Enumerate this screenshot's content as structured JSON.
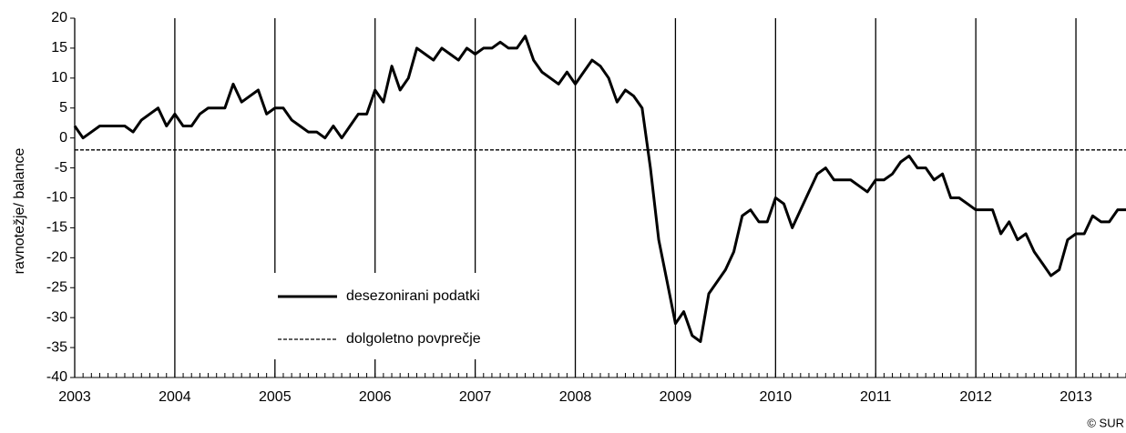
{
  "chart_data": {
    "type": "line",
    "y_label": "ravnotežje/ balance",
    "credit": "© SUR",
    "xlim": [
      2003,
      2013.5
    ],
    "xticks": [
      2003,
      2004,
      2005,
      2006,
      2007,
      2008,
      2009,
      2010,
      2011,
      2012,
      2013
    ],
    "ylim": [
      -40,
      20
    ],
    "yticks": [
      -40,
      -35,
      -30,
      -25,
      -20,
      -15,
      -10,
      -5,
      0,
      5,
      10,
      15,
      20
    ],
    "grid": "x",
    "x": [
      2003,
      2003.083,
      2003.167,
      2003.25,
      2003.333,
      2003.417,
      2003.5,
      2003.583,
      2003.667,
      2003.75,
      2003.833,
      2003.917,
      2004,
      2004.083,
      2004.167,
      2004.25,
      2004.333,
      2004.417,
      2004.5,
      2004.583,
      2004.667,
      2004.75,
      2004.833,
      2004.917,
      2005,
      2005.083,
      2005.167,
      2005.25,
      2005.333,
      2005.417,
      2005.5,
      2005.583,
      2005.667,
      2005.75,
      2005.833,
      2005.917,
      2006,
      2006.083,
      2006.167,
      2006.25,
      2006.333,
      2006.417,
      2006.5,
      2006.583,
      2006.667,
      2006.75,
      2006.833,
      2006.917,
      2007,
      2007.083,
      2007.167,
      2007.25,
      2007.333,
      2007.417,
      2007.5,
      2007.583,
      2007.667,
      2007.75,
      2007.833,
      2007.917,
      2008,
      2008.083,
      2008.167,
      2008.25,
      2008.333,
      2008.417,
      2008.5,
      2008.583,
      2008.667,
      2008.75,
      2008.833,
      2008.917,
      2009,
      2009.083,
      2009.167,
      2009.25,
      2009.333,
      2009.417,
      2009.5,
      2009.583,
      2009.667,
      2009.75,
      2009.833,
      2009.917,
      2010,
      2010.083,
      2010.167,
      2010.25,
      2010.333,
      2010.417,
      2010.5,
      2010.583,
      2010.667,
      2010.75,
      2010.833,
      2010.917,
      2011,
      2011.083,
      2011.167,
      2011.25,
      2011.333,
      2011.417,
      2011.5,
      2011.583,
      2011.667,
      2011.75,
      2011.833,
      2011.917,
      2012,
      2012.083,
      2012.167,
      2012.25,
      2012.333,
      2012.417,
      2012.5,
      2012.583,
      2012.667,
      2012.75,
      2012.833,
      2012.917,
      2013,
      2013.083,
      2013.167,
      2013.25,
      2013.333,
      2013.417,
      2013.5
    ],
    "series": [
      {
        "name": "desezonirani podatki",
        "color": "#000000",
        "values": [
          2,
          0,
          1,
          2,
          2,
          2,
          2,
          1,
          3,
          4,
          5,
          2,
          4,
          2,
          2,
          4,
          5,
          5,
          5,
          9,
          6,
          7,
          8,
          4,
          5,
          5,
          3,
          2,
          1,
          1,
          0,
          2,
          0,
          2,
          4,
          4,
          8,
          6,
          12,
          8,
          10,
          15,
          14,
          13,
          15,
          14,
          13,
          15,
          14,
          15,
          15,
          16,
          15,
          15,
          17,
          13,
          11,
          10,
          9,
          11,
          9,
          11,
          13,
          12,
          10,
          6,
          8,
          7,
          5,
          -5,
          -17,
          -24,
          -31,
          -29,
          -33,
          -34,
          -26,
          -24,
          -22,
          -19,
          -13,
          -12,
          -14,
          -14,
          -10,
          -11,
          -15,
          -12,
          -9,
          -6,
          -5,
          -7,
          -7,
          -7,
          -8,
          -9,
          -7,
          -7,
          -6,
          -4,
          -3,
          -5,
          -5,
          -7,
          -6,
          -10,
          -10,
          -11,
          -12,
          -12,
          -12,
          -16,
          -14,
          -17,
          -16,
          -19,
          -21,
          -23,
          -22,
          -17,
          -16,
          -16,
          -13,
          -14,
          -14,
          -12,
          -12
        ]
      }
    ],
    "hlines": [
      {
        "name": "dolgoletno povprečje",
        "value": -2,
        "color": "#000000",
        "style": "dashed"
      }
    ]
  }
}
